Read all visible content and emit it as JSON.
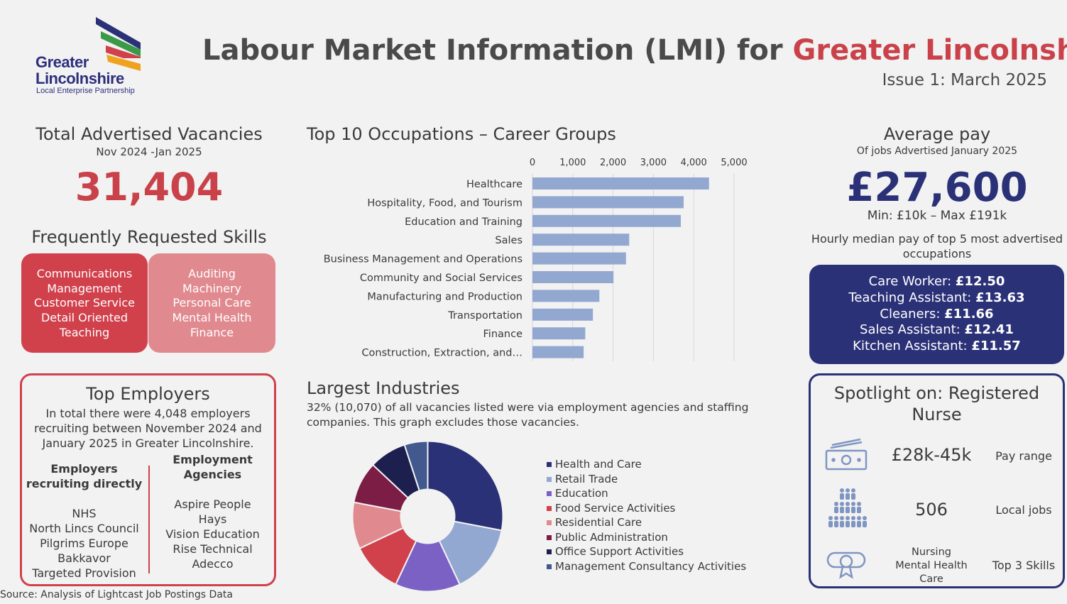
{
  "logo": {
    "line1": "Greater",
    "line2": "Lincolnshire",
    "line3": "Local Enterprise Partnership"
  },
  "header": {
    "title_main": "Labour Market Information (LMI) for ",
    "title_highlight": "Greater Lincolnshire",
    "issue": "Issue 1: March 2025"
  },
  "vacancies": {
    "title": "Total Advertised Vacancies",
    "period": "Nov 2024 -Jan 2025",
    "total": "31,404"
  },
  "skills": {
    "title": "Frequently Requested Skills",
    "group_a": [
      "Communications",
      "Management",
      "Customer Service",
      "Detail Oriented",
      "Teaching"
    ],
    "group_b": [
      "Auditing",
      "Machinery",
      "Personal Care",
      "Mental Health",
      "Finance"
    ]
  },
  "employers": {
    "title": "Top Employers",
    "description": "In total there were 4,048 employers recruiting between November 2024 and January 2025 in Greater Lincolnshire.",
    "direct_heading": "Employers recruiting directly",
    "direct_list": [
      "NHS",
      "North Lincs Council",
      "Pilgrims Europe",
      "Bakkavor",
      "Targeted Provision"
    ],
    "agency_heading": "Employment Agencies",
    "agency_list": [
      "Aspire People",
      "Hays",
      "Vision Education",
      "Rise Technical",
      "Adecco"
    ]
  },
  "occupations": {
    "title": "Top 10 Occupations – Career Groups"
  },
  "chart_data": [
    {
      "type": "bar",
      "orientation": "horizontal",
      "categories": [
        "Healthcare",
        "Hospitality, Food, and Tourism",
        "Education and Training",
        "Sales",
        "Business Management and Operations",
        "Community and Social Services",
        "Manufacturing and Production",
        "Transportation",
        "Finance",
        "Construction, Extraction, and…"
      ],
      "values": [
        4380,
        3750,
        3680,
        2400,
        2320,
        2010,
        1660,
        1500,
        1310,
        1270
      ],
      "x_ticks": [
        "0",
        "1,000",
        "2,000",
        "3,000",
        "4,000",
        "5,000"
      ],
      "xlim": [
        0,
        5000
      ],
      "color": "#93a8d1",
      "grid": true
    },
    {
      "type": "pie",
      "style": "donut",
      "categories": [
        "Health and Care",
        "Retail Trade",
        "Education",
        "Food Service Activities",
        "Residential Care",
        "Public Administration",
        "Office Support Activities",
        "Management Consultancy Activities"
      ],
      "values": [
        28,
        15,
        14,
        11,
        10,
        9,
        8,
        5
      ],
      "colors": [
        "#2a3177",
        "#93a8d1",
        "#7b61c4",
        "#d0414c",
        "#e08a8f",
        "#7b1d45",
        "#1d1f4f",
        "#41598f"
      ],
      "legend": "right"
    }
  ],
  "industries": {
    "title": "Largest Industries",
    "description": "32%  (10,070) of all vacancies listed were via employment agencies and staffing companies. This graph excludes those vacancies."
  },
  "pay": {
    "title": "Average pay",
    "subtitle": "Of jobs Advertised January 2025",
    "value": "£27,600",
    "range": "Min: £10k – Max £191k",
    "hourly_title": "Hourly median pay of top 5 most advertised occupations",
    "hourly": [
      {
        "job": "Care Worker: ",
        "rate": "£12.50"
      },
      {
        "job": "Teaching Assistant: ",
        "rate": "£13.63"
      },
      {
        "job": "Cleaners: ",
        "rate": "£11.66"
      },
      {
        "job": "Sales Assistant: ",
        "rate": "£12.41"
      },
      {
        "job": "Kitchen Assistant: ",
        "rate": "£11.57"
      }
    ]
  },
  "spotlight": {
    "title": "Spotlight on: Registered Nurse",
    "pay_value": "£28k-45k",
    "pay_label": "Pay range",
    "jobs_value": "506",
    "jobs_label": "Local jobs",
    "skills": [
      "Nursing",
      "Mental Health",
      "Care"
    ],
    "skills_label": "Top 3 Skills",
    "icons": [
      "money-icon",
      "people-icon",
      "certificate-icon"
    ]
  },
  "source": "Source: Analysis of Lightcast Job Postings Data"
}
